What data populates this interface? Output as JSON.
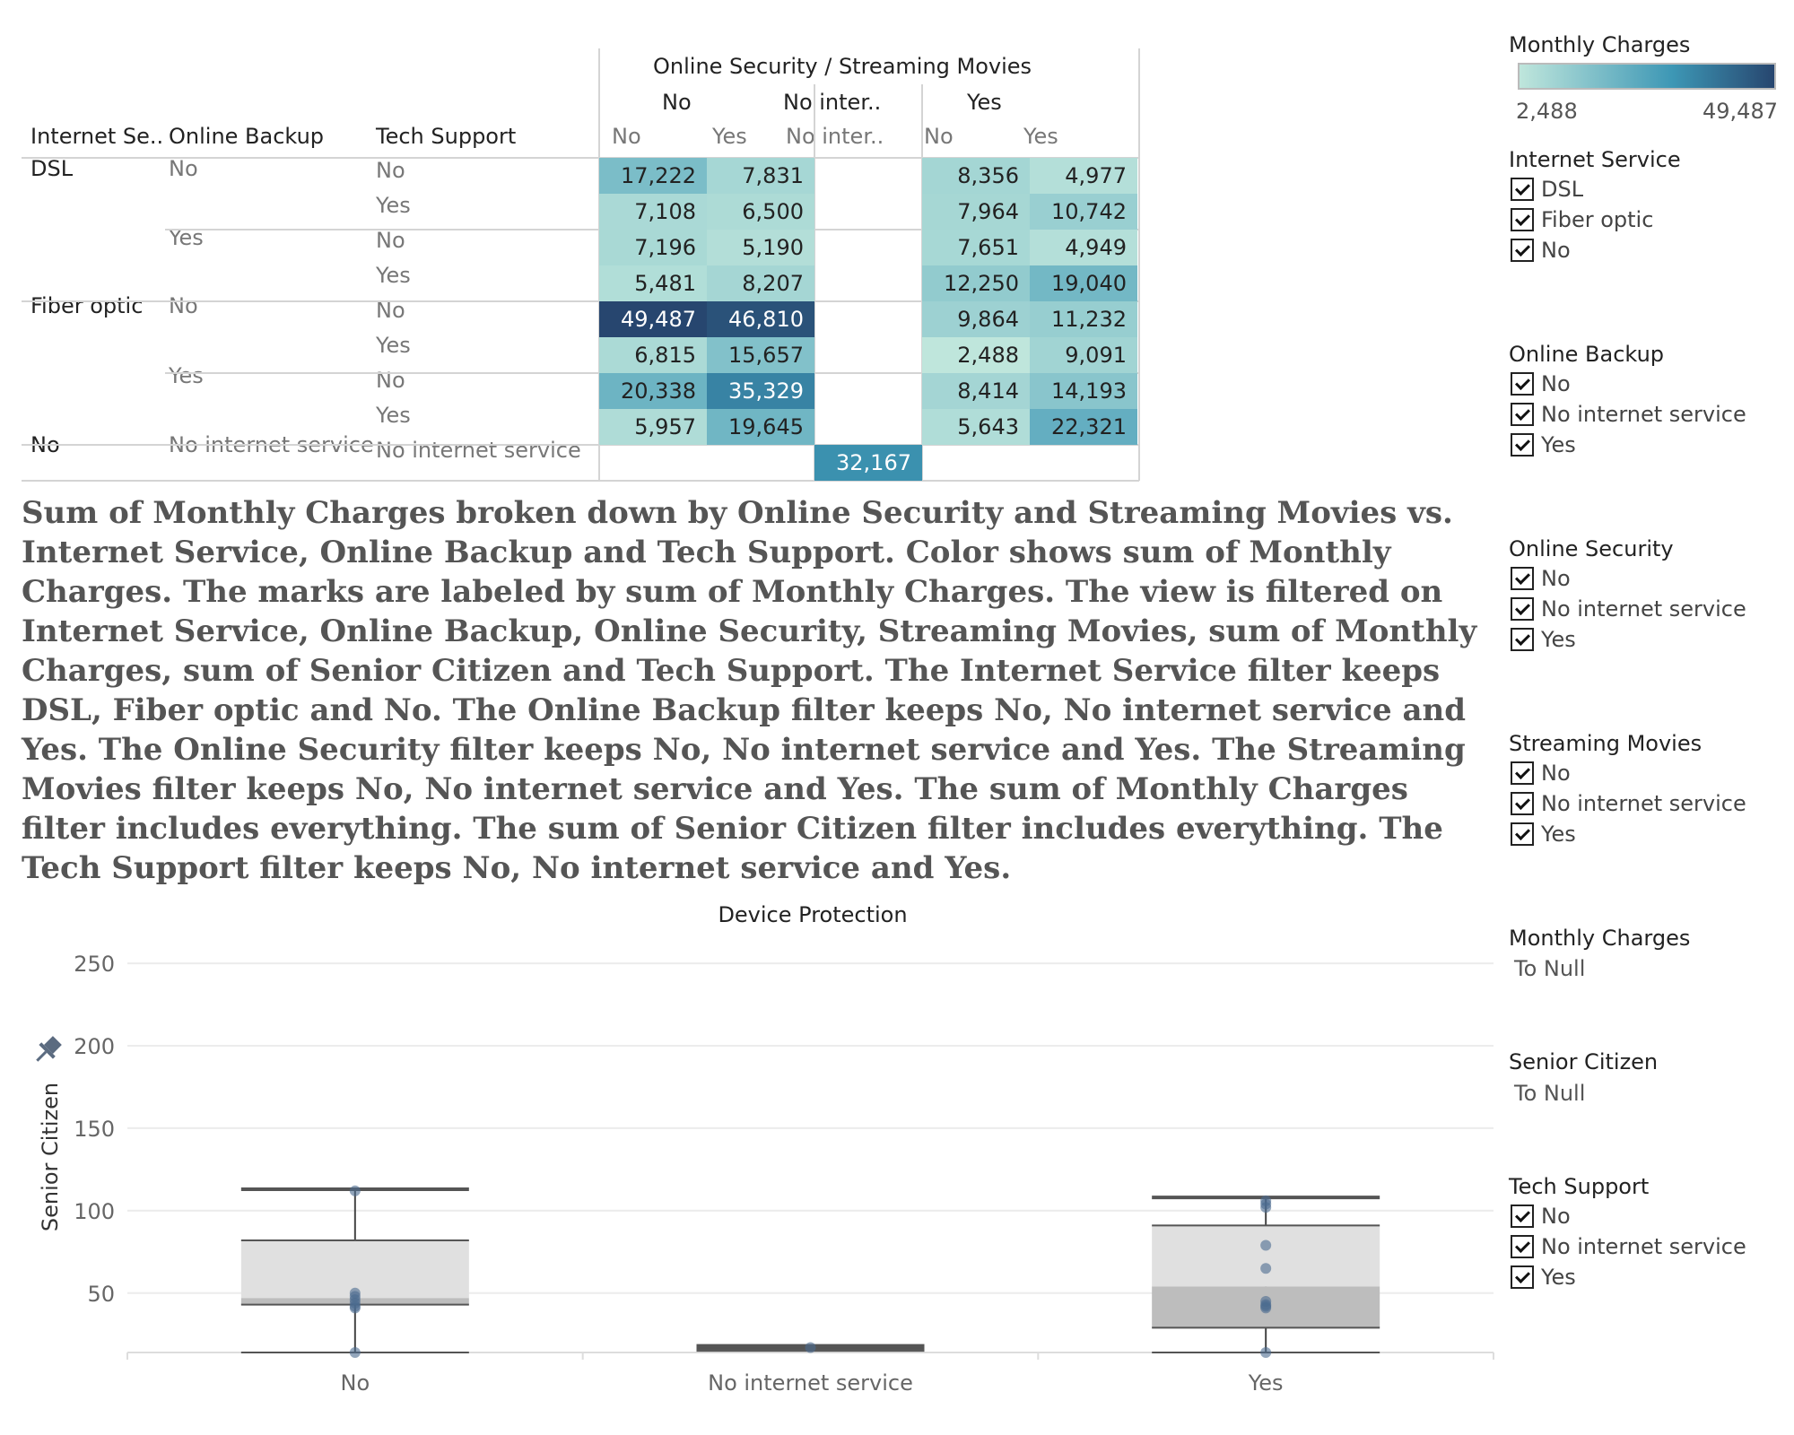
{
  "crosstab": {
    "col_group_title": "Online Security  /  Streaming Movies",
    "row_headers": [
      "Internet Se..",
      "Online Backup",
      "Tech Support"
    ],
    "security_groups": [
      "No",
      "No inter..",
      "Yes"
    ],
    "movies_columns": [
      "No",
      "Yes",
      "No inter..",
      "No",
      "Yes"
    ],
    "internet_labels": [
      "DSL",
      "Fiber optic",
      "No"
    ],
    "backup_labels": [
      "No",
      "Yes",
      "No",
      "Yes",
      "No internet service"
    ],
    "tech_labels": [
      "No",
      "Yes",
      "No",
      "Yes",
      "No",
      "Yes",
      "No",
      "Yes",
      "No internet service"
    ],
    "values": [
      [
        "17,222",
        "7,831",
        "",
        "8,356",
        "4,977"
      ],
      [
        "7,108",
        "6,500",
        "",
        "7,964",
        "10,742"
      ],
      [
        "7,196",
        "5,190",
        "",
        "7,651",
        "4,949"
      ],
      [
        "5,481",
        "8,207",
        "",
        "12,250",
        "19,040"
      ],
      [
        "49,487",
        "46,810",
        "",
        "9,864",
        "11,232"
      ],
      [
        "6,815",
        "15,657",
        "",
        "2,488",
        "9,091"
      ],
      [
        "20,338",
        "35,329",
        "",
        "8,414",
        "14,193"
      ],
      [
        "5,957",
        "19,645",
        "",
        "5,643",
        "22,321"
      ],
      [
        "",
        "",
        "32,167",
        "",
        ""
      ]
    ]
  },
  "caption": "Sum of Monthly Charges broken down by Online Security and Streaming Movies vs. Internet Service, Online Backup and Tech Support.  Color shows sum of Monthly Charges.  The marks are labeled by sum of Monthly Charges. The view is filtered on Internet Service, Online Backup, Online Security, Streaming Movies, sum of Monthly Charges, sum of Senior Citizen and Tech Support. The Internet Service filter keeps DSL, Fiber optic and No. The Online Backup filter keeps No, No internet service and Yes. The Online Security filter keeps No, No internet service and Yes. The Streaming Movies filter keeps No, No internet service and Yes. The sum of Monthly Charges filter includes everything. The sum of Senior Citizen filter includes everything. The Tech Support filter keeps No, No internet service and Yes.",
  "legend": {
    "title": "Monthly Charges",
    "min_label": "2,488",
    "max_label": "49,487",
    "min": 2488,
    "max": 49487,
    "color_low": "#bfe6dc",
    "color_mid": "#3d97b5",
    "color_high": "#27466f"
  },
  "filters": {
    "internet_service": {
      "title": "Internet Service",
      "options": [
        "DSL",
        "Fiber optic",
        "No"
      ]
    },
    "online_backup": {
      "title": "Online Backup",
      "options": [
        "No",
        "No internet service",
        "Yes"
      ]
    },
    "online_security": {
      "title": "Online Security",
      "options": [
        "No",
        "No internet service",
        "Yes"
      ]
    },
    "streaming_movies": {
      "title": "Streaming Movies",
      "options": [
        "No",
        "No internet service",
        "Yes"
      ]
    },
    "monthly_charges": {
      "title": "Monthly Charges",
      "value": "To Null"
    },
    "senior_citizen": {
      "title": "Senior Citizen",
      "value": "To Null"
    },
    "tech_support": {
      "title": "Tech Support",
      "options": [
        "No",
        "No internet service",
        "Yes"
      ]
    }
  },
  "chart_data": {
    "type": "boxplot",
    "title": "Device Protection",
    "ylabel": "Senior Citizen",
    "yticks": [
      50,
      100,
      150,
      200,
      250
    ],
    "ylim": [
      14,
      262
    ],
    "grid": true,
    "categories": [
      "No",
      "No internet service",
      "Yes"
    ],
    "boxes": [
      {
        "category": "No",
        "whisker_low": 14,
        "q1": 43,
        "median": 47,
        "q3": 82,
        "whisker_high": 113,
        "points": [
          14,
          41,
          42,
          44,
          46,
          48,
          50,
          112
        ]
      },
      {
        "category": "No internet service",
        "whisker_low": 15,
        "q1": 16,
        "median": 16,
        "q3": 17,
        "whisker_high": 18,
        "points": [
          17
        ]
      },
      {
        "category": "Yes",
        "whisker_low": 14,
        "q1": 29,
        "median": 54,
        "q3": 91,
        "whisker_high": 108,
        "points": [
          14,
          41,
          42,
          43,
          45,
          65,
          79,
          102,
          104,
          106
        ]
      }
    ],
    "point_color": "#4b6b8f",
    "box_upper_color": "#e0e0e0",
    "box_lower_color": "#bdbdbd"
  }
}
